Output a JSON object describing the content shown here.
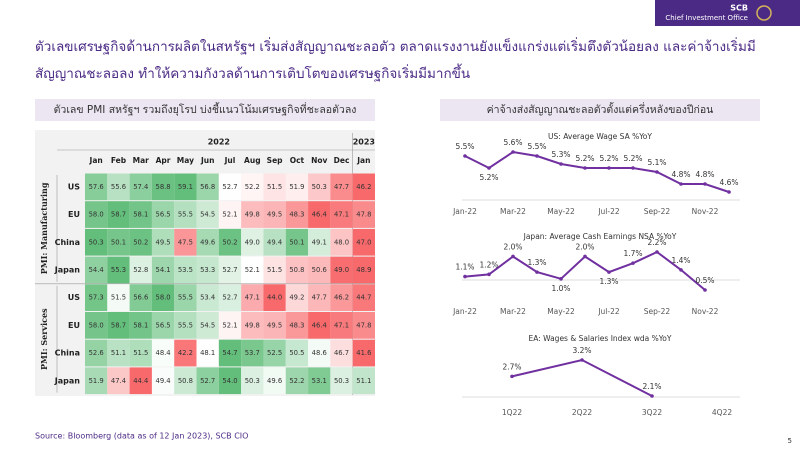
{
  "header": {
    "brand": "SCB",
    "unit": "Chief Investment Office",
    "title_lines": [
      "ตัวเลขเศรษฐกิจด้านการผลิตในสหรัฐฯ เริ่มส่งสัญญาณชะลอตัว ตลาดแรงงานยังแข็งแกร่งแต่เริ่มตึงตัวน้อยลง และค่าจ้างเริ่มมี",
      "สัญญาณชะลอลง ทำให้ความกังวลด้านการเติบโตของเศรษฐกิจเริ่มมีมากขึ้น"
    ]
  },
  "heatmap": {
    "title": "ตัวเลข PMI สหรัฐฯ รวมถึงยุโรป บ่งชี้แนวโน้มเศรษฐกิจที่ชะลอตัวลง",
    "years": [
      "2022",
      "2023"
    ],
    "months": [
      "Jan",
      "Feb",
      "Mar",
      "Apr",
      "May",
      "Jun",
      "Jul",
      "Aug",
      "Sep",
      "Oct",
      "Nov",
      "Dec",
      "Jan"
    ],
    "groups": [
      {
        "label": "PMI: Manufacturing",
        "rows": [
          {
            "country": "US",
            "values": [
              "57.6",
              "55.6",
              "57.4",
              "58.8",
              "59.1",
              "56.8",
              "52.7",
              "52.2",
              "51.5",
              "51.9",
              "50.3",
              "47.7",
              "46.2"
            ]
          },
          {
            "country": "EU",
            "values": [
              "58.0",
              "58.7",
              "58.1",
              "56.5",
              "55.5",
              "54.5",
              "52.1",
              "49.8",
              "49.5",
              "48.3",
              "46.4",
              "47.1",
              "47.8"
            ]
          },
          {
            "country": "China",
            "values": [
              "50.3",
              "50.1",
              "50.2",
              "49.5",
              "47.5",
              "49.6",
              "50.2",
              "49.0",
              "49.4",
              "50.1",
              "49.1",
              "48.0",
              "47.0"
            ]
          },
          {
            "country": "Japan",
            "values": [
              "54.4",
              "55.3",
              "52.8",
              "54.1",
              "53.5",
              "53.3",
              "52.7",
              "52.1",
              "51.5",
              "50.8",
              "50.6",
              "49.0",
              "48.9"
            ]
          }
        ]
      },
      {
        "label": "PMI: Services",
        "rows": [
          {
            "country": "US",
            "values": [
              "57.3",
              "51.5",
              "56.6",
              "58.0",
              "55.5",
              "53.4",
              "52.7",
              "47.1",
              "44.0",
              "49.2",
              "47.7",
              "46.2",
              "44.7"
            ]
          },
          {
            "country": "EU",
            "values": [
              "58.0",
              "58.7",
              "58.1",
              "56.5",
              "55.5",
              "54.5",
              "52.1",
              "49.8",
              "49.5",
              "48.3",
              "46.4",
              "47.1",
              "47.8"
            ]
          },
          {
            "country": "China",
            "values": [
              "52.6",
              "51.1",
              "51.5",
              "48.4",
              "42.2",
              "48.1",
              "54.7",
              "53.7",
              "52.5",
              "50.5",
              "48.6",
              "46.7",
              "41.6"
            ]
          },
          {
            "country": "Japan",
            "values": [
              "51.9",
              "47.4",
              "44.4",
              "49.4",
              "50.8",
              "52.7",
              "54.0",
              "50.3",
              "49.6",
              "52.2",
              "53.1",
              "50.3",
              "51.1"
            ]
          }
        ]
      }
    ]
  },
  "charts_title": "ค่าจ้างส่งสัญญาณชะลอตัวตั้งแต่ครึ่งหลังของปีก่อน",
  "chart_data": [
    {
      "type": "line",
      "title": "US: Average Wage SA %YoY",
      "color": "#7030a0",
      "categories": [
        "Jan-22",
        null,
        "Mar-22",
        null,
        "May-22",
        null,
        "Jul-22",
        null,
        "Sep-22",
        null,
        "Nov-22",
        null
      ],
      "values": [
        5.5,
        5.2,
        5.6,
        5.5,
        5.3,
        5.2,
        5.2,
        5.2,
        5.1,
        4.8,
        4.8,
        4.6
      ],
      "value_labels": [
        "5.5%",
        "5.2%",
        "5.6%",
        "5.5%",
        "5.3%",
        "5.2%",
        "5.2%",
        "5.2%",
        "5.1%",
        "4.8%",
        "4.8%",
        "4.6%"
      ]
    },
    {
      "type": "line",
      "title": "Japan: Average Cash Earnings NSA %YoY",
      "color": "#7030a0",
      "categories": [
        "Jan-22",
        null,
        "Mar-22",
        null,
        "May-22",
        null,
        "Jul-22",
        null,
        "Sep-22",
        null,
        "Nov-22"
      ],
      "values": [
        1.1,
        1.2,
        2.0,
        1.3,
        1.0,
        2.0,
        1.3,
        1.7,
        2.2,
        1.4,
        0.5
      ],
      "value_labels": [
        "1.1%",
        "1.2%",
        "2.0%",
        "1.3%",
        "1.0%",
        "2.0%",
        "1.3%",
        "1.7%",
        "2.2%",
        "1.4%",
        "0.5%"
      ]
    },
    {
      "type": "line",
      "title": "EA: Wages & Salaries Index wda %YoY",
      "color": "#7030a0",
      "categories": [
        "1Q22",
        "2Q22",
        "3Q22",
        "4Q22"
      ],
      "values": [
        2.7,
        3.2,
        2.1,
        null
      ],
      "value_labels": [
        "2.7%",
        "3.2%",
        "2.1%",
        null
      ]
    }
  ],
  "source": "Source: Bloomberg (data as of 12 Jan 2023), SCB CIO",
  "page_number": "5"
}
